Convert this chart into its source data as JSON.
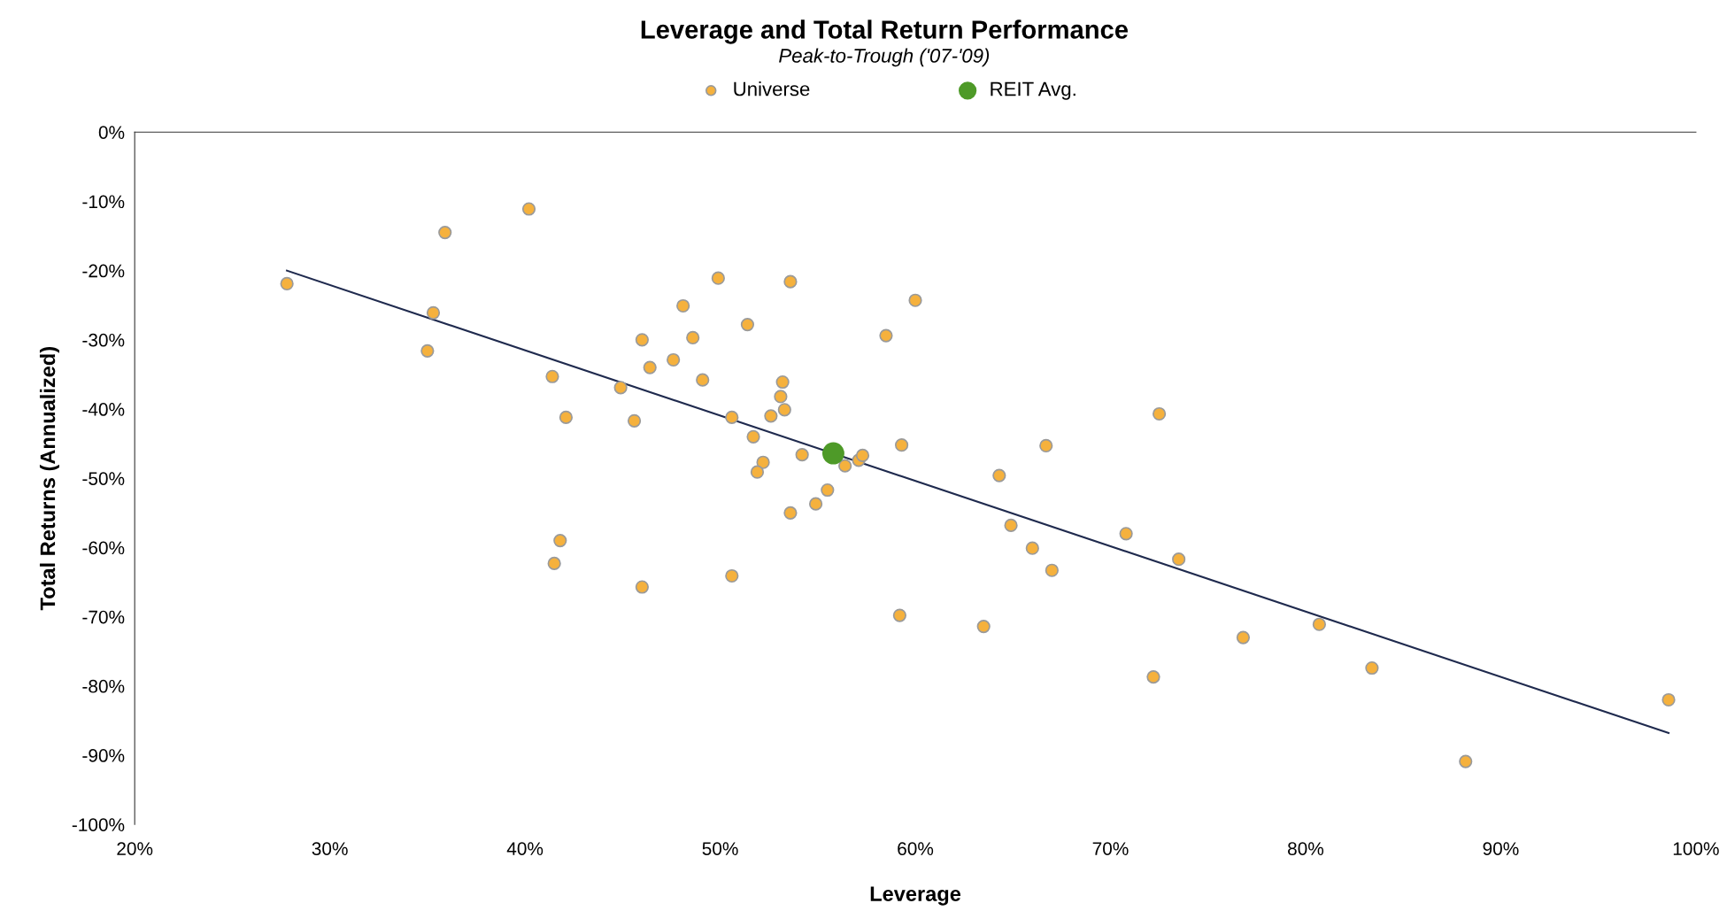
{
  "chart_data": {
    "type": "scatter",
    "title": "Leverage and Total Return Performance",
    "subtitle": "Peak-to-Trough ('07-'09)",
    "xlabel": "Leverage",
    "ylabel": "Total Returns (Annualized)",
    "xlim": [
      20,
      100
    ],
    "xticks": [
      {
        "value": 20,
        "label": "20%"
      },
      {
        "value": 30,
        "label": "30%"
      },
      {
        "value": 40,
        "label": "40%"
      },
      {
        "value": 50,
        "label": "50%"
      },
      {
        "value": 60,
        "label": "60%"
      },
      {
        "value": 70,
        "label": "70%"
      },
      {
        "value": 80,
        "label": "80%"
      },
      {
        "value": 90,
        "label": "90%"
      },
      {
        "value": 100,
        "label": "100%"
      }
    ],
    "ylim": [
      -100,
      0
    ],
    "yticks": [
      {
        "value": 0,
        "label": "0%"
      },
      {
        "value": -10,
        "label": "-10%"
      },
      {
        "value": -20,
        "label": "-20%"
      },
      {
        "value": -30,
        "label": "-30%"
      },
      {
        "value": -40,
        "label": "-40%"
      },
      {
        "value": -50,
        "label": "-50%"
      },
      {
        "value": -60,
        "label": "-60%"
      },
      {
        "value": -70,
        "label": "-70%"
      },
      {
        "value": -80,
        "label": "-80%"
      },
      {
        "value": -90,
        "label": "-90%"
      },
      {
        "value": -100,
        "label": "-100%"
      }
    ],
    "grid": false,
    "legend": "top",
    "marker": "circle",
    "series": [
      {
        "name": "Universe",
        "color": "#f5b13d",
        "x": [
          27.8,
          35.9,
          40.2,
          35.3,
          35.0,
          41.4,
          42.1,
          41.8,
          41.5,
          44.9,
          45.6,
          46.0,
          46.4,
          46.0,
          47.6,
          48.1,
          48.6,
          49.1,
          49.9,
          50.6,
          50.6,
          51.4,
          51.7,
          52.2,
          51.9,
          52.6,
          53.6,
          53.2,
          53.1,
          53.3,
          53.6,
          54.2,
          54.9,
          55.5,
          56.4,
          57.1,
          57.3,
          58.5,
          60.0,
          59.3,
          59.2,
          63.5,
          64.3,
          64.9,
          66.0,
          66.7,
          67.0,
          70.8,
          72.5,
          72.2,
          73.5,
          76.8,
          80.7,
          83.4,
          88.2,
          98.6
        ],
        "values": [
          -21.9,
          -14.5,
          -11.1,
          -26.1,
          -31.6,
          -35.3,
          -41.2,
          -59.0,
          -62.3,
          -36.9,
          -41.7,
          -30.0,
          -34.0,
          -65.7,
          -32.9,
          -25.1,
          -29.7,
          -35.8,
          -21.1,
          -41.2,
          -64.1,
          -27.8,
          -44.0,
          -47.7,
          -49.1,
          -41.0,
          -21.6,
          -36.1,
          -38.2,
          -40.1,
          -55.0,
          -46.6,
          -53.7,
          -51.7,
          -48.2,
          -47.4,
          -46.7,
          -29.4,
          -24.3,
          -45.2,
          -69.8,
          -71.4,
          -49.6,
          -56.8,
          -60.1,
          -45.3,
          -63.3,
          -58.0,
          -40.7,
          -78.7,
          -61.7,
          -73.0,
          -71.1,
          -77.4,
          -90.9,
          -82.0
        ]
      },
      {
        "name": "REIT Avg.",
        "color": "#4e9a28",
        "x": [
          55.8
        ],
        "values": [
          -46.4
        ]
      },
      {
        "type": "line",
        "marker": "none",
        "color": "#1f2a4e",
        "x": [
          27.8,
          98.6
        ],
        "values": [
          -20.0,
          -86.8
        ]
      }
    ]
  }
}
